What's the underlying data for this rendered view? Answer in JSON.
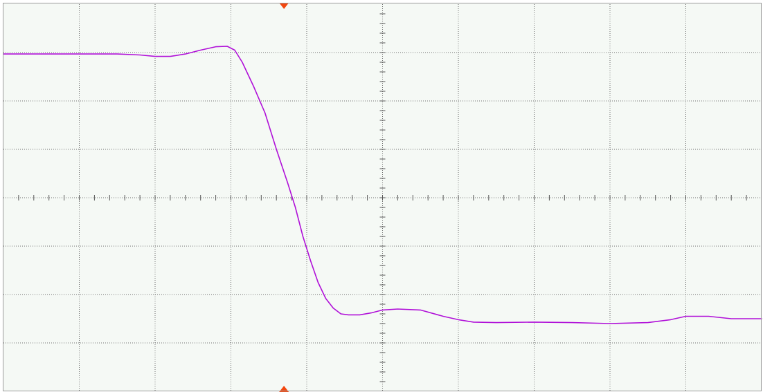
{
  "chart_data": {
    "type": "line",
    "title": "",
    "xlabel": "",
    "ylabel": "",
    "grid": true,
    "divisions": {
      "x": 10,
      "y": 8
    },
    "xlim": [
      0,
      10
    ],
    "ylim": [
      -4,
      4
    ],
    "trigger_position_div": 3.7,
    "series": [
      {
        "values_x": [
          0,
          0.5,
          1.0,
          1.5,
          1.8,
          2.0,
          2.2,
          2.4,
          2.6,
          2.8,
          2.95,
          3.05,
          3.15,
          3.3,
          3.45,
          3.6,
          3.75,
          3.85,
          3.95,
          4.05,
          4.15,
          4.25,
          4.35,
          4.45,
          4.55,
          4.7,
          4.85,
          5.0,
          5.2,
          5.5,
          5.8,
          6.0,
          6.2,
          6.5,
          7.0,
          7.5,
          8.0,
          8.5,
          8.8,
          9.0,
          9.3,
          9.6,
          10.0
        ],
        "values_y": [
          2.97,
          2.97,
          2.97,
          2.97,
          2.95,
          2.92,
          2.92,
          2.97,
          3.05,
          3.12,
          3.13,
          3.05,
          2.8,
          2.3,
          1.75,
          1.0,
          0.3,
          -0.2,
          -0.8,
          -1.3,
          -1.75,
          -2.08,
          -2.28,
          -2.4,
          -2.42,
          -2.42,
          -2.38,
          -2.32,
          -2.3,
          -2.32,
          -2.45,
          -2.52,
          -2.57,
          -2.58,
          -2.57,
          -2.58,
          -2.6,
          -2.58,
          -2.52,
          -2.45,
          -2.45,
          -2.5,
          -2.5
        ]
      }
    ]
  },
  "colors": {
    "screen_bg": "#f5f9f5",
    "grid": "#6e6e6e",
    "trace": "#b010d8",
    "trigger_marker": "#f2470f",
    "border": "#9a9a9a"
  }
}
